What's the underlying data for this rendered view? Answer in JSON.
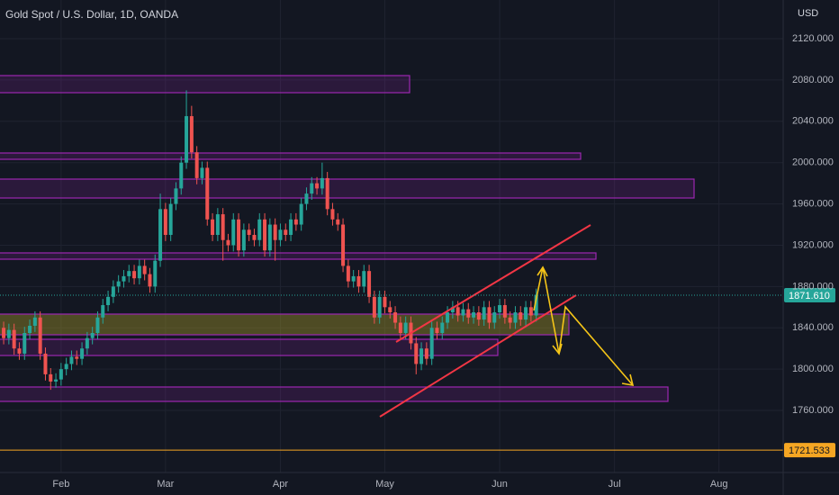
{
  "chart_data": {
    "type": "candlestick",
    "title": "Gold Spot / U.S. Dollar, 1D, OANDA",
    "y_axis_label": "USD",
    "up_color": "#26a69a",
    "down_color": "#ef5350",
    "grid": true,
    "xlim": [
      -0.7,
      149.3
    ],
    "xticks": [
      {
        "value": 11,
        "label": "Feb"
      },
      {
        "value": 31,
        "label": "Mar"
      },
      {
        "value": 53,
        "label": "Apr"
      },
      {
        "value": 73,
        "label": "May"
      },
      {
        "value": 95,
        "label": "Jun"
      },
      {
        "value": 117,
        "label": "Jul"
      },
      {
        "value": 137,
        "label": "Aug"
      }
    ],
    "ylim": [
      1699.9,
      2157.5
    ],
    "yticks": [
      {
        "value": 2120,
        "label": "2120.000"
      },
      {
        "value": 2080,
        "label": "2080.000"
      },
      {
        "value": 2040,
        "label": "2040.000"
      },
      {
        "value": 2000,
        "label": "2000.000"
      },
      {
        "value": 1960,
        "label": "1960.000"
      },
      {
        "value": 1920,
        "label": "1920.000"
      },
      {
        "value": 1880,
        "label": "1880.000"
      },
      {
        "value": 1840,
        "label": "1840.000"
      },
      {
        "value": 1800,
        "label": "1800.000"
      },
      {
        "value": 1760,
        "label": "1760.000"
      }
    ],
    "price_lines": [
      {
        "value": 1871.61,
        "label": "1871.610",
        "color": "#26a69a",
        "dashed": true
      },
      {
        "value": 1721.533,
        "label": "1721.533",
        "color": "#f5a623",
        "dashed": false
      }
    ],
    "open": [
      1840,
      1830,
      1838,
      1820,
      1815,
      1835,
      1842,
      1850,
      1815,
      1795,
      1788,
      1790,
      1800,
      1805,
      1812,
      1810,
      1820,
      1830,
      1835,
      1850,
      1862,
      1870,
      1880,
      1885,
      1890,
      1895,
      1888,
      1900,
      1892,
      1880,
      1905,
      1955,
      1930,
      1960,
      1975,
      2000,
      2045,
      2010,
      1985,
      1995,
      1945,
      1930,
      1950,
      1925,
      1920,
      1945,
      1915,
      1935,
      1930,
      1925,
      1945,
      1915,
      1940,
      1925,
      1935,
      1930,
      1945,
      1940,
      1960,
      1970,
      1980,
      1975,
      1985,
      1955,
      1945,
      1940,
      1900,
      1885,
      1890,
      1880,
      1895,
      1870,
      1850,
      1870,
      1860,
      1855,
      1845,
      1835,
      1845,
      1825,
      1805,
      1820,
      1810,
      1840,
      1835,
      1845,
      1855,
      1860,
      1852,
      1858,
      1850,
      1855,
      1848,
      1860,
      1845,
      1855,
      1862,
      1850,
      1845,
      1855,
      1848,
      1860,
      1852
    ],
    "high": [
      1846,
      1844,
      1844,
      1826,
      1841,
      1848,
      1856,
      1856,
      1821,
      1801,
      1796,
      1806,
      1811,
      1818,
      1818,
      1826,
      1836,
      1841,
      1856,
      1868,
      1876,
      1886,
      1891,
      1896,
      1901,
      1901,
      1906,
      1906,
      1898,
      1911,
      1970,
      1961,
      1966,
      1981,
      2006,
      2070,
      2055,
      2016,
      2001,
      2001,
      1951,
      1956,
      1956,
      1931,
      1951,
      1951,
      1941,
      1941,
      1936,
      1951,
      1951,
      1946,
      1946,
      1941,
      1941,
      1951,
      1951,
      1966,
      1976,
      1986,
      1986,
      2000,
      1991,
      1961,
      1951,
      1946,
      1906,
      1896,
      1896,
      1901,
      1901,
      1876,
      1876,
      1876,
      1866,
      1861,
      1851,
      1851,
      1851,
      1831,
      1826,
      1826,
      1846,
      1846,
      1851,
      1861,
      1866,
      1866,
      1864,
      1864,
      1861,
      1861,
      1866,
      1866,
      1861,
      1868,
      1868,
      1856,
      1861,
      1861,
      1866,
      1866,
      1878
    ],
    "low": [
      1824,
      1824,
      1814,
      1809,
      1809,
      1829,
      1836,
      1809,
      1789,
      1780,
      1782,
      1784,
      1794,
      1799,
      1804,
      1804,
      1814,
      1824,
      1829,
      1844,
      1856,
      1864,
      1874,
      1879,
      1884,
      1882,
      1882,
      1886,
      1874,
      1874,
      1899,
      1924,
      1924,
      1954,
      1969,
      1994,
      2004,
      1979,
      1979,
      1939,
      1924,
      1924,
      1905,
      1914,
      1914,
      1909,
      1909,
      1924,
      1919,
      1919,
      1909,
      1909,
      1905,
      1919,
      1924,
      1924,
      1934,
      1934,
      1954,
      1964,
      1969,
      1969,
      1949,
      1939,
      1934,
      1894,
      1879,
      1879,
      1874,
      1874,
      1864,
      1844,
      1844,
      1854,
      1849,
      1839,
      1829,
      1829,
      1819,
      1795,
      1799,
      1804,
      1804,
      1829,
      1829,
      1839,
      1849,
      1846,
      1846,
      1844,
      1844,
      1842,
      1842,
      1839,
      1839,
      1849,
      1844,
      1839,
      1839,
      1842,
      1842,
      1846,
      1846
    ],
    "close": [
      1830,
      1838,
      1820,
      1815,
      1835,
      1842,
      1850,
      1815,
      1795,
      1788,
      1790,
      1800,
      1805,
      1812,
      1810,
      1820,
      1830,
      1835,
      1850,
      1862,
      1870,
      1880,
      1885,
      1890,
      1895,
      1888,
      1900,
      1892,
      1880,
      1905,
      1955,
      1930,
      1960,
      1975,
      2000,
      2045,
      2010,
      1985,
      1995,
      1945,
      1930,
      1950,
      1925,
      1920,
      1945,
      1915,
      1935,
      1930,
      1925,
      1945,
      1915,
      1940,
      1925,
      1935,
      1930,
      1945,
      1940,
      1960,
      1970,
      1980,
      1975,
      1985,
      1955,
      1945,
      1940,
      1900,
      1885,
      1890,
      1880,
      1895,
      1870,
      1850,
      1870,
      1860,
      1855,
      1845,
      1835,
      1845,
      1825,
      1805,
      1820,
      1810,
      1840,
      1835,
      1845,
      1855,
      1860,
      1852,
      1858,
      1850,
      1855,
      1848,
      1860,
      1845,
      1855,
      1862,
      1850,
      1845,
      1855,
      1848,
      1860,
      1852,
      1872
    ]
  }
}
